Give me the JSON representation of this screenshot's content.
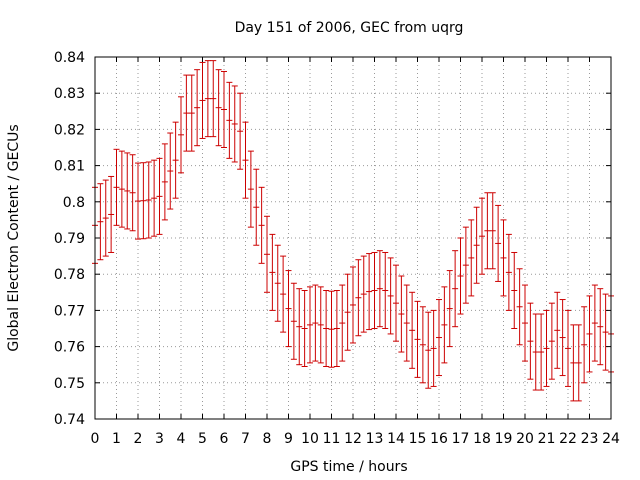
{
  "chart_data": {
    "type": "scatter",
    "title": "Day 151 of 2006, GEC from uqrg",
    "xlabel": "GPS time / hours",
    "ylabel": "Global Electron Content / GECUs",
    "xlim": [
      0,
      24
    ],
    "ylim": [
      0.74,
      0.84
    ],
    "xticks": [
      0,
      1,
      2,
      3,
      4,
      5,
      6,
      7,
      8,
      9,
      10,
      11,
      12,
      13,
      14,
      15,
      16,
      17,
      18,
      19,
      20,
      21,
      22,
      23,
      24
    ],
    "yticks": [
      0.74,
      0.75,
      0.76,
      0.77,
      0.78,
      0.79,
      0.8,
      0.81,
      0.82,
      0.83,
      0.84
    ],
    "ytick_labels": [
      "0.74",
      "0.75",
      "0.76",
      "0.77",
      "0.78",
      "0.79",
      "0.8",
      "0.81",
      "0.82",
      "0.83",
      "0.84"
    ],
    "grid": true,
    "color": "#cc0000",
    "error": 0.0105,
    "series": [
      {
        "x": [
          0,
          0.25,
          0.5,
          0.75,
          1,
          1.25,
          1.5,
          1.75,
          2,
          2.25,
          2.5,
          2.75,
          3,
          3.25,
          3.5,
          3.75,
          4,
          4.25,
          4.5,
          4.75,
          5,
          5.25,
          5.5,
          5.75,
          6,
          6.25,
          6.5,
          6.75,
          7,
          7.25,
          7.5,
          7.75,
          8,
          8.25,
          8.5,
          8.75,
          9,
          9.25,
          9.5,
          9.75,
          10,
          10.25,
          10.5,
          10.75,
          11,
          11.25,
          11.5,
          11.75,
          12,
          12.25,
          12.5,
          12.75,
          13,
          13.25,
          13.5,
          13.75,
          14,
          14.25,
          14.5,
          14.75,
          15,
          15.25,
          15.5,
          15.75,
          16,
          16.25,
          16.5,
          16.75,
          17,
          17.25,
          17.5,
          17.75,
          18,
          18.25,
          18.5,
          18.75,
          19,
          19.25,
          19.5,
          19.75,
          20,
          20.25,
          20.5,
          20.75,
          21,
          21.25,
          21.5,
          21.75,
          22,
          22.25,
          22.5,
          22.75,
          23,
          23.25,
          23.5,
          23.75,
          24
        ],
        "y": [
          0.7935,
          0.7945,
          0.7955,
          0.7965,
          0.804,
          0.8035,
          0.803,
          0.8025,
          0.8002,
          0.8003,
          0.8005,
          0.801,
          0.8015,
          0.8055,
          0.8085,
          0.8115,
          0.8185,
          0.8245,
          0.8245,
          0.826,
          0.828,
          0.8285,
          0.8285,
          0.826,
          0.8255,
          0.8225,
          0.8215,
          0.8195,
          0.8115,
          0.8035,
          0.7985,
          0.7935,
          0.7855,
          0.7805,
          0.7775,
          0.7745,
          0.7705,
          0.767,
          0.7655,
          0.765,
          0.766,
          0.7665,
          0.766,
          0.765,
          0.7648,
          0.765,
          0.7665,
          0.7695,
          0.7715,
          0.7735,
          0.7745,
          0.7752,
          0.7755,
          0.776,
          0.7755,
          0.774,
          0.772,
          0.769,
          0.7665,
          0.7645,
          0.762,
          0.7605,
          0.759,
          0.7595,
          0.7625,
          0.766,
          0.7705,
          0.776,
          0.7795,
          0.7825,
          0.7845,
          0.788,
          0.7905,
          0.792,
          0.792,
          0.7885,
          0.7845,
          0.7805,
          0.7755,
          0.771,
          0.7665,
          0.7615,
          0.7585,
          0.7585,
          0.7595,
          0.7615,
          0.7645,
          0.7625,
          0.7595,
          0.7555,
          0.7555,
          0.7605,
          0.7635,
          0.7665,
          0.7655,
          0.764,
          0.7635
        ]
      }
    ]
  }
}
